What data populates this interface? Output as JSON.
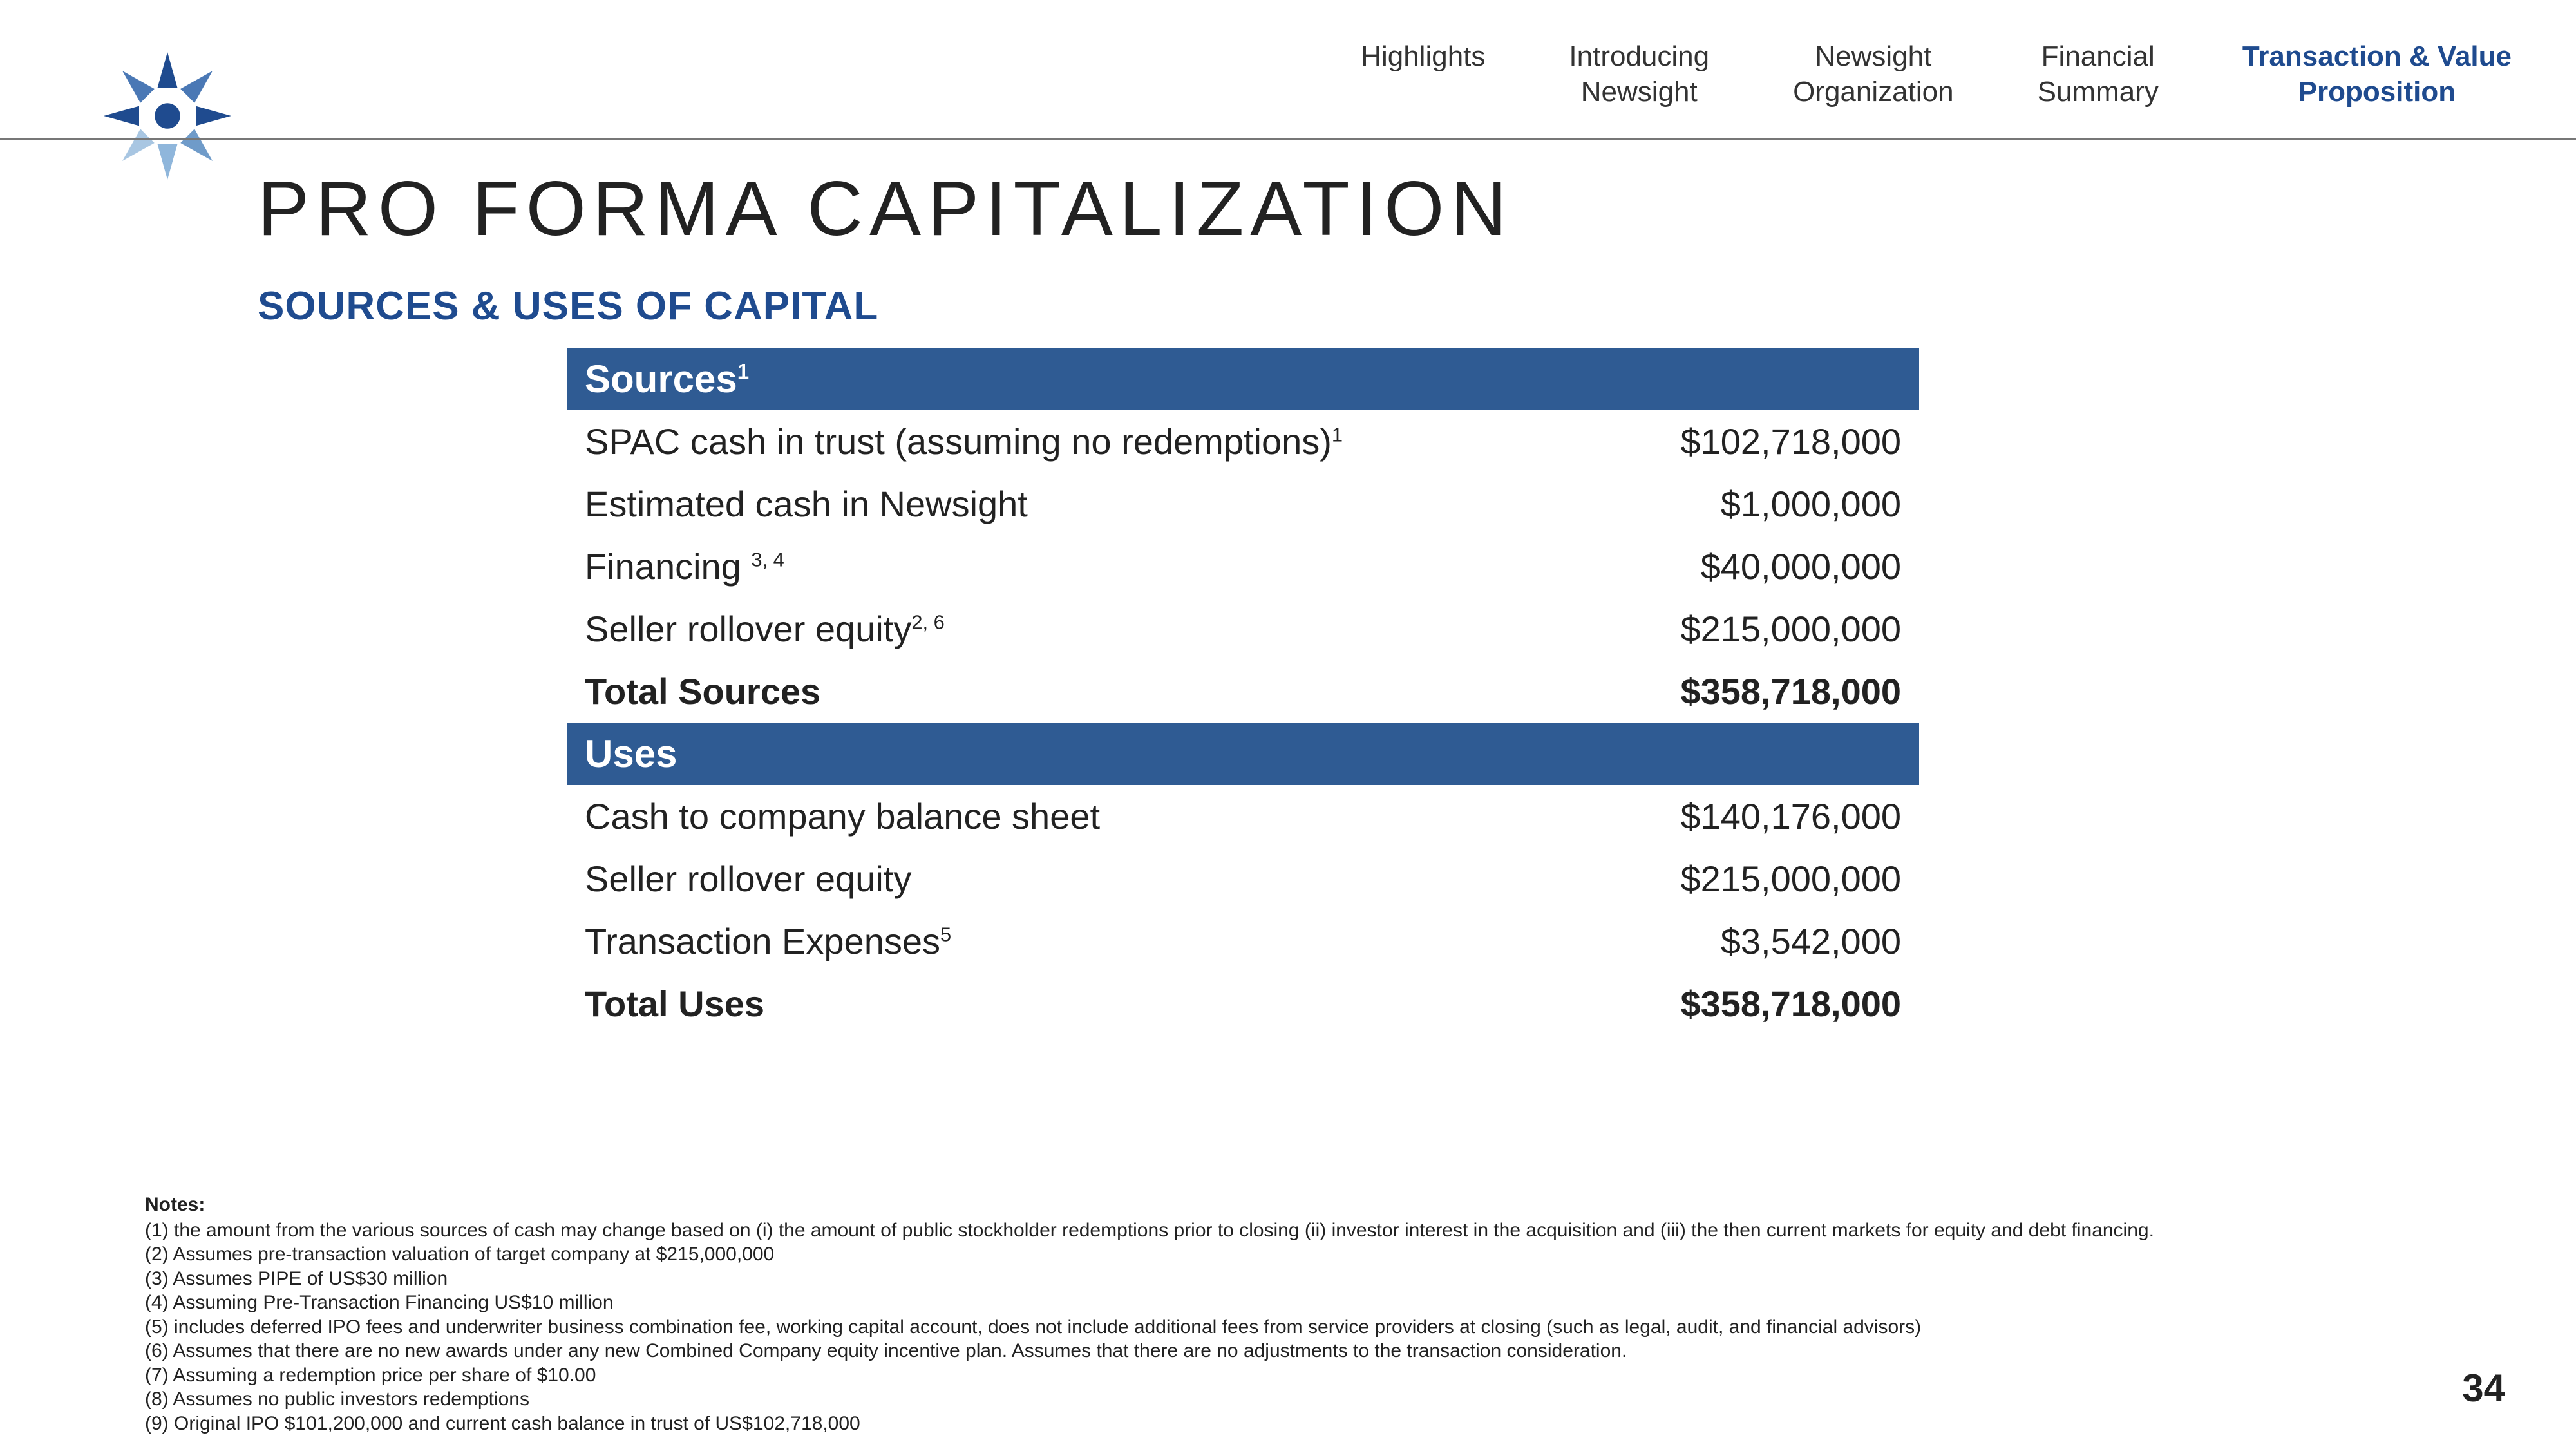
{
  "nav": {
    "items": [
      {
        "label": "Highlights",
        "active": false
      },
      {
        "label": "Introducing\nNewsight",
        "active": false
      },
      {
        "label": "Newsight\nOrganization",
        "active": false
      },
      {
        "label": "Financial\nSummary",
        "active": false
      },
      {
        "label": "Transaction & Value\nProposition",
        "active": true
      }
    ]
  },
  "title": "PRO FORMA CAPITALIZATION",
  "subtitle": "SOURCES & USES OF CAPITAL",
  "colors": {
    "header_bg": "#2f5b93",
    "accent": "#1f4b8f",
    "text": "#222222",
    "rule": "#777777",
    "bg": "#ffffff"
  },
  "sources": {
    "header": "Sources",
    "header_sup": "1",
    "rows": [
      {
        "label": "SPAC cash in trust (assuming no redemptions)",
        "sup": "1",
        "value": "$102,718,000"
      },
      {
        "label": "Estimated cash in Newsight",
        "sup": "",
        "value": "$1,000,000"
      },
      {
        "label": "Financing ",
        "sup": "3, 4",
        "value": "$40,000,000"
      },
      {
        "label": "Seller rollover equity",
        "sup": "2, 6",
        "value": "$215,000,000"
      }
    ],
    "total": {
      "label": "Total Sources",
      "value": "$358,718,000"
    }
  },
  "uses": {
    "header": "Uses",
    "rows": [
      {
        "label": "Cash to company balance sheet",
        "sup": "",
        "value": "$140,176,000"
      },
      {
        "label": "Seller rollover equity",
        "sup": "",
        "value": "$215,000,000"
      },
      {
        "label": "Transaction Expenses",
        "sup": "5",
        "value": "$3,542,000"
      }
    ],
    "total": {
      "label": "Total Uses",
      "value": "$358,718,000"
    }
  },
  "notes": {
    "title": "Notes:",
    "items": [
      "(1) the amount from the various sources of cash may change based on (i) the amount of public stockholder redemptions prior to closing (ii) investor interest in the acquisition and (iii) the then current markets for equity and debt financing.",
      "(2) Assumes pre-transaction valuation of target company at $215,000,000",
      "(3) Assumes PIPE of US$30 million",
      "(4) Assuming Pre-Transaction Financing US$10 million",
      "(5) includes deferred IPO fees and underwriter business combination fee, working capital account, does not include additional fees from service providers at closing (such as legal, audit, and financial advisors)",
      "(6) Assumes that there are no new awards under any new Combined Company equity incentive plan. Assumes that there are no adjustments to the transaction consideration.",
      "(7) Assuming a redemption price per share of $10.00",
      "(8) Assumes no public investors redemptions",
      "(9) Original IPO $101,200,000 and current cash balance in trust of US$102,718,000"
    ]
  },
  "page_number": "34"
}
